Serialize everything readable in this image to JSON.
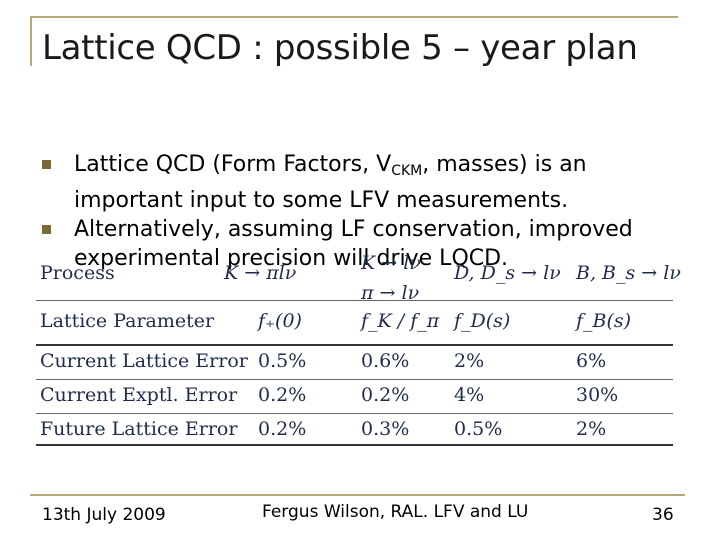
{
  "slide": {
    "title": "Lattice QCD : possible 5 – year plan",
    "bullets": [
      "Lattice QCD (Form Factors, V",
      "Alternatively, assuming LF conservation, improved experimental precision will drive LQCD."
    ],
    "bullet1_sub": "CKM",
    "bullet1_rest": ", masses) is an important input to some LFV measurements."
  },
  "table": {
    "process_label": "Process",
    "process_cols": [
      "K → πlν",
      "K → lν",
      "π → lν",
      "D, D_s → lν",
      "B, B_s → lν"
    ],
    "header": [
      "Lattice  Parameter",
      "f₊(0)",
      "f_K / f_π",
      "f_D(s)",
      "f_B(s)"
    ],
    "rows": [
      [
        "Current Lattice Error",
        "0.5%",
        "0.6%",
        "2%",
        "6%"
      ],
      [
        "Current Exptl. Error",
        "0.2%",
        "0.2%",
        "4%",
        "30%"
      ],
      [
        "Future Lattice Error",
        "0.2%",
        "0.3%",
        "0.5%",
        "2%"
      ]
    ]
  },
  "footer": {
    "date": "13th July 2009",
    "author": "Fergus Wilson, RAL. LFV and LU",
    "page": "36"
  }
}
